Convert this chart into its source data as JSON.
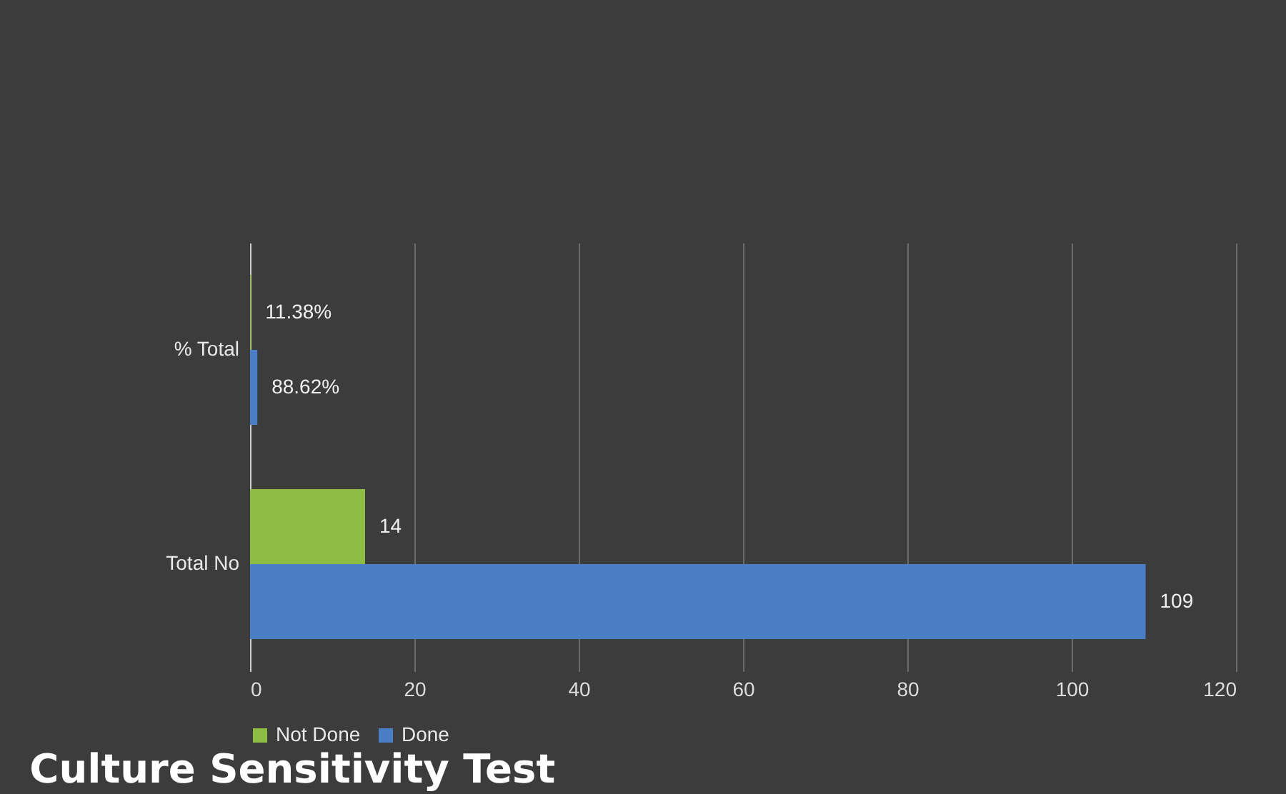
{
  "chart_data": {
    "type": "bar",
    "orientation": "horizontal",
    "title": "Culture Sensitivity Test",
    "categories": [
      "% Total",
      "Total No"
    ],
    "series": [
      {
        "name": "Not Done",
        "color": "#8fbc45",
        "values": [
          0.1138,
          14
        ],
        "value_labels": [
          "11.38%",
          "14"
        ]
      },
      {
        "name": "Done",
        "color": "#4a7fc6",
        "values": [
          0.8862,
          109
        ],
        "value_labels": [
          "88.62%",
          "109"
        ]
      }
    ],
    "xlim": [
      0,
      120
    ],
    "xticks": [
      0,
      20,
      40,
      60,
      80,
      100,
      120
    ],
    "grid": "x",
    "legend": "bottom"
  }
}
